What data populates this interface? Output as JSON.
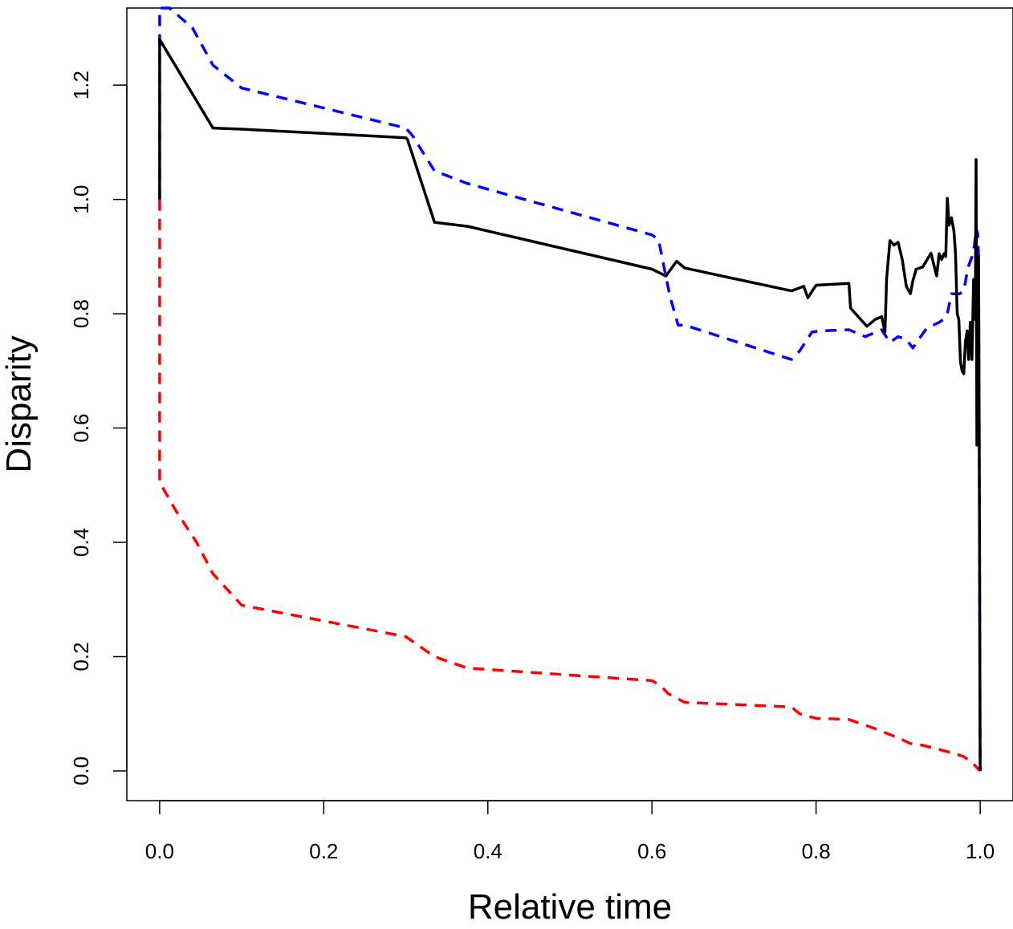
{
  "chart_data": {
    "type": "line",
    "title": "",
    "xlabel": "Relative time",
    "ylabel": "Disparity",
    "xlim": [
      -0.04,
      1.04
    ],
    "ylim": [
      -0.052,
      1.335
    ],
    "xticks": [
      0.0,
      0.2,
      0.4,
      0.6,
      0.8,
      1.0
    ],
    "xtick_labels": [
      "0.0",
      "0.2",
      "0.4",
      "0.6",
      "0.8",
      "1.0"
    ],
    "yticks": [
      0.0,
      0.2,
      0.4,
      0.6,
      0.8,
      1.0,
      1.2
    ],
    "ytick_labels": [
      "0.0",
      "0.2",
      "0.4",
      "0.6",
      "0.8",
      "1.0",
      "1.2"
    ],
    "grid": false,
    "legend": false,
    "series": [
      {
        "color": "#000000",
        "dash": "solid",
        "x": [
          0.0,
          0.0,
          0.065,
          0.1,
          0.3,
          0.302,
          0.335,
          0.375,
          0.6,
          0.617,
          0.63,
          0.64,
          0.77,
          0.785,
          0.79,
          0.8,
          0.84,
          0.842,
          0.862,
          0.872,
          0.88,
          0.884,
          0.886,
          0.89,
          0.895,
          0.9,
          0.905,
          0.91,
          0.915,
          0.918,
          0.922,
          0.93,
          0.94,
          0.947,
          0.95,
          0.953,
          0.956,
          0.958,
          0.96,
          0.962,
          0.965,
          0.968,
          0.97,
          0.972,
          0.974,
          0.976,
          0.978,
          0.98,
          0.982,
          0.984,
          0.986,
          0.988,
          0.99,
          0.992,
          0.994,
          0.995,
          0.996,
          0.997,
          0.998,
          0.999,
          1.0
        ],
        "y": [
          1.0,
          1.28,
          1.125,
          1.123,
          1.108,
          1.105,
          0.96,
          0.953,
          0.878,
          0.866,
          0.892,
          0.88,
          0.84,
          0.848,
          0.828,
          0.85,
          0.853,
          0.81,
          0.778,
          0.79,
          0.795,
          0.768,
          0.862,
          0.928,
          0.92,
          0.925,
          0.895,
          0.848,
          0.835,
          0.858,
          0.878,
          0.882,
          0.906,
          0.866,
          0.905,
          0.895,
          0.905,
          0.9,
          1.002,
          0.955,
          0.968,
          0.945,
          0.905,
          0.8,
          0.79,
          0.715,
          0.7,
          0.695,
          0.75,
          0.77,
          0.72,
          0.785,
          0.72,
          0.86,
          0.79,
          1.07,
          0.57,
          0.8,
          0.9,
          0.5,
          0.0
        ]
      },
      {
        "color": "#0000FF",
        "dash": "dashed",
        "x": [
          0.0,
          0.0,
          0.012,
          0.04,
          0.065,
          0.1,
          0.3,
          0.308,
          0.335,
          0.375,
          0.6,
          0.608,
          0.617,
          0.622,
          0.632,
          0.64,
          0.77,
          0.78,
          0.795,
          0.805,
          0.84,
          0.86,
          0.88,
          0.89,
          0.9,
          0.91,
          0.918,
          0.925,
          0.935,
          0.95,
          0.955,
          0.96,
          0.965,
          0.97,
          0.975,
          0.98,
          0.985,
          0.99,
          0.993,
          0.995,
          0.997,
          0.998,
          0.999,
          1.0
        ],
        "y": [
          1.0,
          1.335,
          1.335,
          1.3,
          1.235,
          1.195,
          1.125,
          1.112,
          1.05,
          1.028,
          0.938,
          0.93,
          0.865,
          0.83,
          0.78,
          0.78,
          0.72,
          0.735,
          0.768,
          0.77,
          0.772,
          0.76,
          0.772,
          0.75,
          0.76,
          0.755,
          0.74,
          0.755,
          0.775,
          0.785,
          0.79,
          0.8,
          0.835,
          0.835,
          0.835,
          0.84,
          0.88,
          0.9,
          0.92,
          0.95,
          0.94,
          0.9,
          0.5,
          0.0
        ]
      },
      {
        "color": "#FF0000",
        "dash": "dashed",
        "x": [
          0.0,
          0.0,
          0.0,
          0.02,
          0.045,
          0.065,
          0.1,
          0.3,
          0.31,
          0.335,
          0.375,
          0.6,
          0.61,
          0.62,
          0.64,
          0.77,
          0.78,
          0.8,
          0.84,
          0.87,
          0.9,
          0.915,
          0.93,
          0.97,
          0.98,
          0.99,
          1.0
        ],
        "y": [
          1.0,
          0.53,
          0.505,
          0.455,
          0.4,
          0.345,
          0.29,
          0.235,
          0.225,
          0.2,
          0.18,
          0.158,
          0.15,
          0.135,
          0.12,
          0.112,
          0.1,
          0.092,
          0.09,
          0.075,
          0.058,
          0.048,
          0.045,
          0.03,
          0.025,
          0.015,
          0.0
        ]
      }
    ]
  }
}
